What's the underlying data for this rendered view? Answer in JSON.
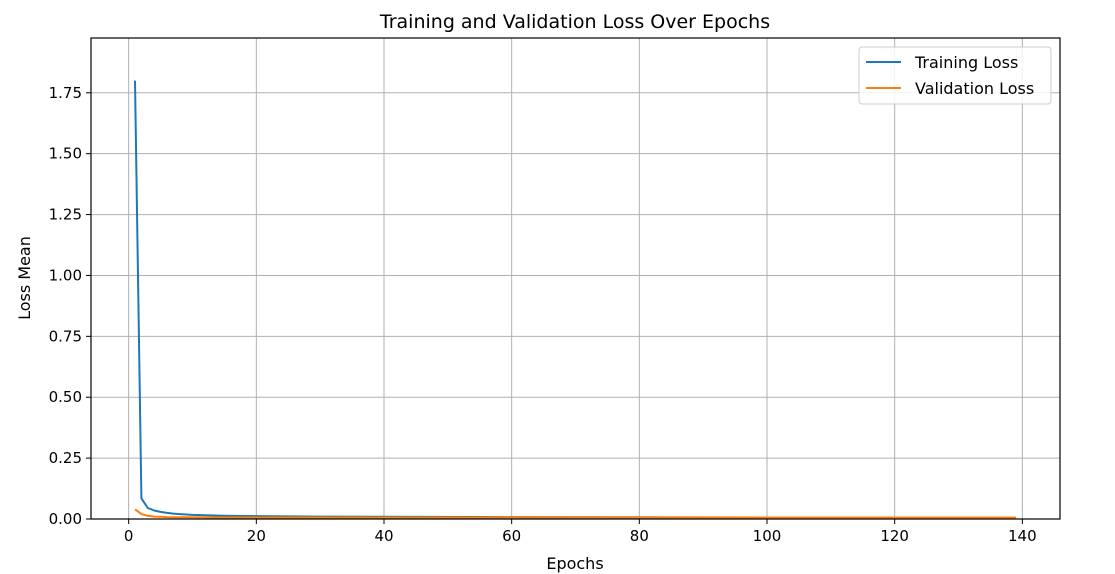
{
  "chart_data": {
    "type": "line",
    "title": "Training and Validation Loss Over Epochs",
    "xlabel": "Epochs",
    "ylabel": "Loss Mean",
    "xlim": [
      -5.9,
      145.9
    ],
    "ylim": [
      0,
      1.975
    ],
    "xticks": [
      0,
      20,
      40,
      60,
      80,
      100,
      120,
      140
    ],
    "yticks": [
      0.0,
      0.25,
      0.5,
      0.75,
      1.0,
      1.25,
      1.5,
      1.75
    ],
    "ytick_labels": [
      "0.00",
      "0.25",
      "0.50",
      "0.75",
      "1.00",
      "1.25",
      "1.50",
      "1.75"
    ],
    "grid": true,
    "legend_position": "top-right",
    "series": [
      {
        "name": "Training Loss",
        "color": "#1f77b4",
        "x": [
          1,
          2,
          3,
          4,
          5,
          6,
          7,
          8,
          10,
          12,
          15,
          20,
          30,
          40,
          60,
          80,
          100,
          120,
          139
        ],
        "y": [
          1.8,
          0.085,
          0.045,
          0.035,
          0.029,
          0.025,
          0.022,
          0.02,
          0.017,
          0.015,
          0.013,
          0.012,
          0.01,
          0.009,
          0.008,
          0.007,
          0.006,
          0.006,
          0.005
        ]
      },
      {
        "name": "Validation Loss",
        "color": "#ff7f0e",
        "x": [
          1,
          2,
          3,
          4,
          5,
          6,
          8,
          10,
          15,
          20,
          30,
          40,
          60,
          80,
          100,
          120,
          139
        ],
        "y": [
          0.04,
          0.02,
          0.013,
          0.01,
          0.009,
          0.008,
          0.007,
          0.007,
          0.006,
          0.006,
          0.006,
          0.006,
          0.006,
          0.006,
          0.006,
          0.006,
          0.006
        ]
      }
    ]
  }
}
